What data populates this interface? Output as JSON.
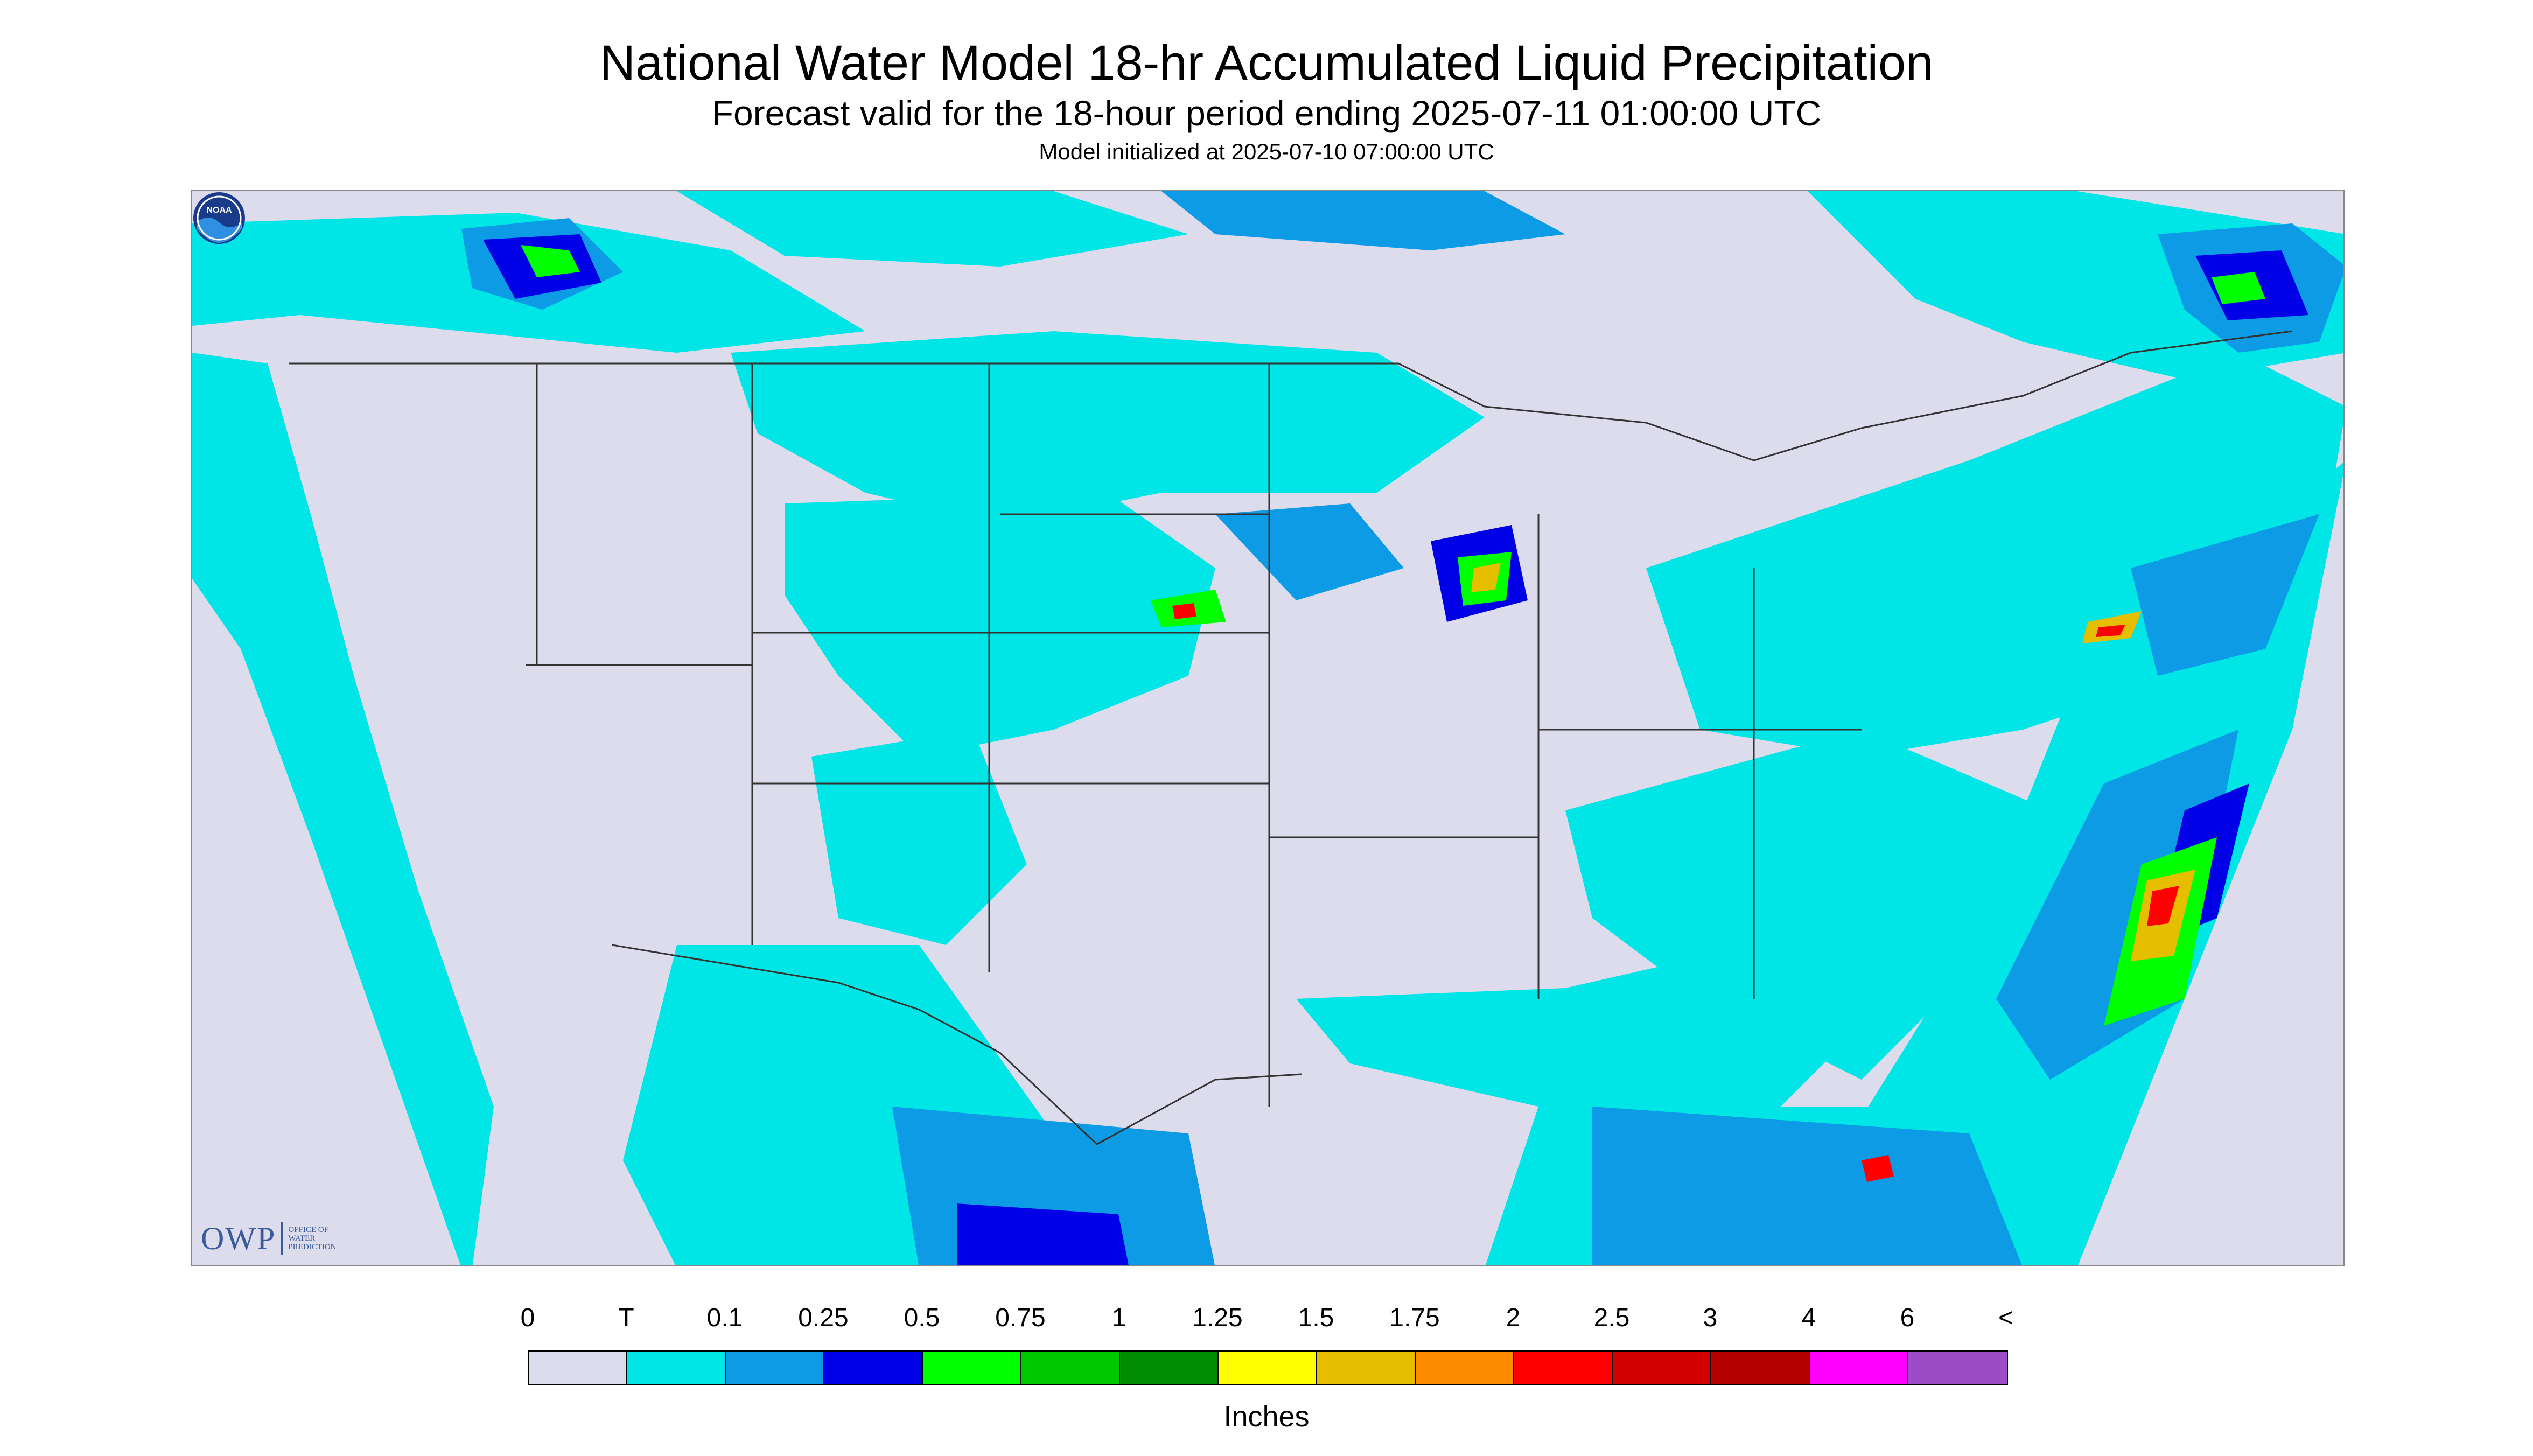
{
  "header": {
    "title": "National Water Model 18-hr Accumulated Liquid Precipitation",
    "subtitle": "Forecast valid for the 18-hour period ending 2025-07-11 01:00:00 UTC",
    "init": "Model initialized at 2025-07-10 07:00:00 UTC"
  },
  "logos": {
    "owp_letters": "OWP",
    "owp_sub": [
      "OFFICE OF",
      "WATER",
      "PREDICTION"
    ],
    "noaa_text": "NOAA"
  },
  "legend": {
    "labels": [
      "0",
      "T",
      "0.1",
      "0.25",
      "0.5",
      "0.75",
      "1",
      "1.25",
      "1.5",
      "1.75",
      "2",
      "2.5",
      "3",
      "4",
      "6",
      "<"
    ],
    "colors": [
      "#dcdcec",
      "#00e5e5",
      "#0d9be6",
      "#0000e6",
      "#00ff00",
      "#00c800",
      "#008c00",
      "#ffff00",
      "#e6be00",
      "#ff8c00",
      "#ff0000",
      "#d20000",
      "#b40000",
      "#ff00ff",
      "#9b4dc8"
    ],
    "units": "Inches"
  },
  "colors": {
    "background": "#dcdcec",
    "trace": "#00e5e5"
  }
}
